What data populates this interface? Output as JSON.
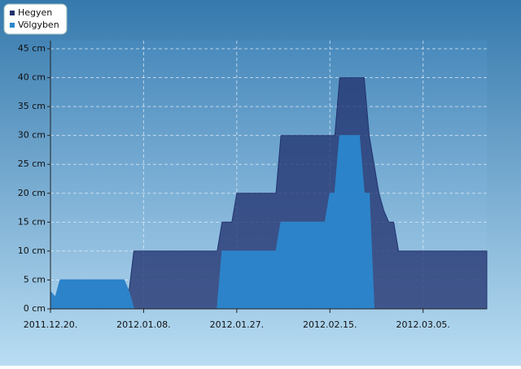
{
  "chart_data": {
    "type": "area",
    "x": [
      "2011-12-20",
      "2011-12-21",
      "2011-12-22",
      "2012-01-04",
      "2012-01-05",
      "2012-01-06",
      "2012-01-23",
      "2012-01-24",
      "2012-01-26",
      "2012-01-27",
      "2012-02-04",
      "2012-02-05",
      "2012-02-14",
      "2012-02-15",
      "2012-02-16",
      "2012-02-17",
      "2012-02-21",
      "2012-02-22",
      "2012-02-23",
      "2012-02-24",
      "2012-02-25",
      "2012-02-26",
      "2012-02-27",
      "2012-02-28",
      "2012-02-29",
      "2012-03-18"
    ],
    "series": [
      {
        "name": "Hegyen",
        "color": "#22336f",
        "values": [
          3,
          2,
          5,
          5,
          3,
          10,
          10,
          15,
          15,
          20,
          20,
          30,
          30,
          30,
          30,
          40,
          40,
          40,
          30,
          25,
          20,
          17,
          15,
          15,
          10,
          10
        ]
      },
      {
        "name": "Völgyben",
        "color": "#2b86cc",
        "values": [
          3,
          2,
          5,
          5,
          3,
          0,
          0,
          10,
          10,
          10,
          10,
          15,
          15,
          20,
          20,
          30,
          30,
          20,
          20,
          0,
          0,
          0,
          0,
          0,
          0,
          0
        ]
      }
    ],
    "xlim": [
      "2011-12-20",
      "2012-03-18"
    ],
    "xticks": [
      {
        "value": "2011-12-20",
        "label": "2011.12.20."
      },
      {
        "value": "2012-01-08",
        "label": "2012.01.08."
      },
      {
        "value": "2012-01-27",
        "label": "2012.01.27."
      },
      {
        "value": "2012-02-15",
        "label": "2012.02.15."
      },
      {
        "value": "2012-03-05",
        "label": "2012.03.05."
      }
    ],
    "ylim": [
      0,
      45
    ],
    "yticks": [
      {
        "value": 0,
        "label": "0 cm"
      },
      {
        "value": 5,
        "label": "5 cm"
      },
      {
        "value": 10,
        "label": "10 cm"
      },
      {
        "value": 15,
        "label": "15 cm"
      },
      {
        "value": 20,
        "label": "20 cm"
      },
      {
        "value": 25,
        "label": "25 cm"
      },
      {
        "value": 30,
        "label": "30 cm"
      },
      {
        "value": 35,
        "label": "35 cm"
      },
      {
        "value": 40,
        "label": "40 cm"
      },
      {
        "value": 45,
        "label": "45 cm"
      }
    ],
    "grid": true,
    "legend": "top-left"
  }
}
